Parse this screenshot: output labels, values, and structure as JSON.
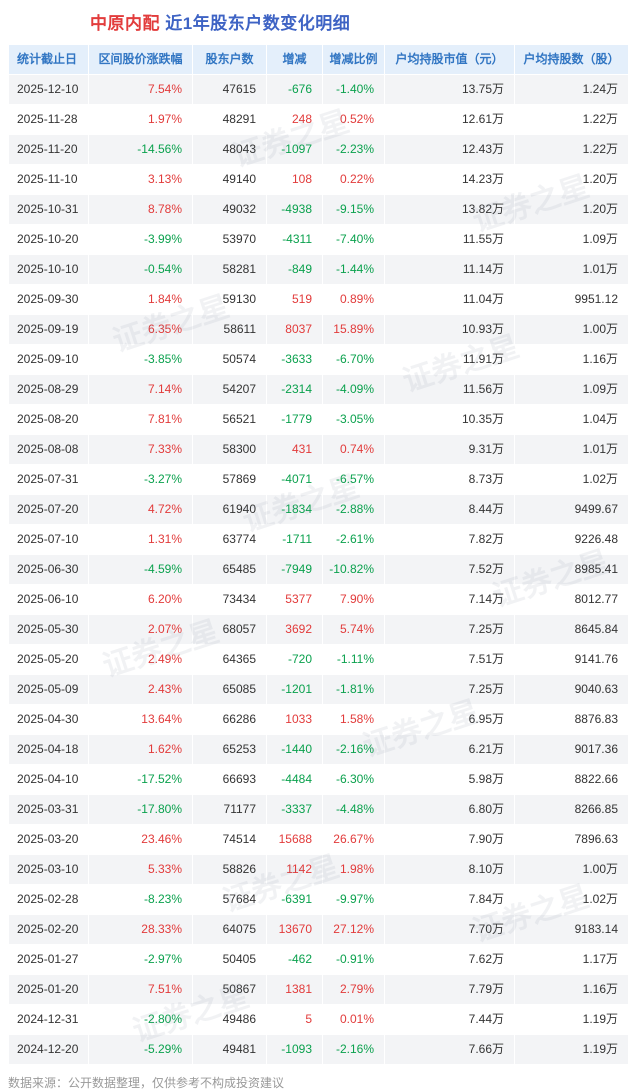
{
  "title": {
    "stock_name": "中原内配",
    "subtitle": "近1年股东户数变化明细"
  },
  "footer_note": "数据来源：公开数据整理，仅供参考不构成投资建议",
  "watermark_text": "证券之星",
  "colors": {
    "title_stock": "#e23c3c",
    "title_subtitle": "#3e63c4",
    "header_bg": "#e4effb",
    "header_text": "#3276c3",
    "stripe_bg": "#f3f4f6",
    "table_border": "#4d8fd1",
    "positive": "#e23a3a",
    "negative": "#0aa14d",
    "footer_text": "#999999"
  },
  "chart_data": {
    "type": "table",
    "title": "中原内配 近1年股东户数变化明细",
    "columns": [
      "统计截止日",
      "区间股价涨跌幅",
      "股东户数",
      "增减",
      "增减比例",
      "户均持股市值（元）",
      "户均持股数（股）"
    ],
    "rows": [
      [
        "2025-12-10",
        "7.54%",
        "47615",
        "-676",
        "-1.40%",
        "13.75万",
        "1.24万"
      ],
      [
        "2025-11-28",
        "1.97%",
        "48291",
        "248",
        "0.52%",
        "12.61万",
        "1.22万"
      ],
      [
        "2025-11-20",
        "-14.56%",
        "48043",
        "-1097",
        "-2.23%",
        "12.43万",
        "1.22万"
      ],
      [
        "2025-11-10",
        "3.13%",
        "49140",
        "108",
        "0.22%",
        "14.23万",
        "1.20万"
      ],
      [
        "2025-10-31",
        "8.78%",
        "49032",
        "-4938",
        "-9.15%",
        "13.82万",
        "1.20万"
      ],
      [
        "2025-10-20",
        "-3.99%",
        "53970",
        "-4311",
        "-7.40%",
        "11.55万",
        "1.09万"
      ],
      [
        "2025-10-10",
        "-0.54%",
        "58281",
        "-849",
        "-1.44%",
        "11.14万",
        "1.01万"
      ],
      [
        "2025-09-30",
        "1.84%",
        "59130",
        "519",
        "0.89%",
        "11.04万",
        "9951.12"
      ],
      [
        "2025-09-19",
        "6.35%",
        "58611",
        "8037",
        "15.89%",
        "10.93万",
        "1.00万"
      ],
      [
        "2025-09-10",
        "-3.85%",
        "50574",
        "-3633",
        "-6.70%",
        "11.91万",
        "1.16万"
      ],
      [
        "2025-08-29",
        "7.14%",
        "54207",
        "-2314",
        "-4.09%",
        "11.56万",
        "1.09万"
      ],
      [
        "2025-08-20",
        "7.81%",
        "56521",
        "-1779",
        "-3.05%",
        "10.35万",
        "1.04万"
      ],
      [
        "2025-08-08",
        "7.33%",
        "58300",
        "431",
        "0.74%",
        "9.31万",
        "1.01万"
      ],
      [
        "2025-07-31",
        "-3.27%",
        "57869",
        "-4071",
        "-6.57%",
        "8.73万",
        "1.02万"
      ],
      [
        "2025-07-20",
        "4.72%",
        "61940",
        "-1834",
        "-2.88%",
        "8.44万",
        "9499.67"
      ],
      [
        "2025-07-10",
        "1.31%",
        "63774",
        "-1711",
        "-2.61%",
        "7.82万",
        "9226.48"
      ],
      [
        "2025-06-30",
        "-4.59%",
        "65485",
        "-7949",
        "-10.82%",
        "7.52万",
        "8985.41"
      ],
      [
        "2025-06-10",
        "6.20%",
        "73434",
        "5377",
        "7.90%",
        "7.14万",
        "8012.77"
      ],
      [
        "2025-05-30",
        "2.07%",
        "68057",
        "3692",
        "5.74%",
        "7.25万",
        "8645.84"
      ],
      [
        "2025-05-20",
        "2.49%",
        "64365",
        "-720",
        "-1.11%",
        "7.51万",
        "9141.76"
      ],
      [
        "2025-05-09",
        "2.43%",
        "65085",
        "-1201",
        "-1.81%",
        "7.25万",
        "9040.63"
      ],
      [
        "2025-04-30",
        "13.64%",
        "66286",
        "1033",
        "1.58%",
        "6.95万",
        "8876.83"
      ],
      [
        "2025-04-18",
        "1.62%",
        "65253",
        "-1440",
        "-2.16%",
        "6.21万",
        "9017.36"
      ],
      [
        "2025-04-10",
        "-17.52%",
        "66693",
        "-4484",
        "-6.30%",
        "5.98万",
        "8822.66"
      ],
      [
        "2025-03-31",
        "-17.80%",
        "71177",
        "-3337",
        "-4.48%",
        "6.80万",
        "8266.85"
      ],
      [
        "2025-03-20",
        "23.46%",
        "74514",
        "15688",
        "26.67%",
        "7.90万",
        "7896.63"
      ],
      [
        "2025-03-10",
        "5.33%",
        "58826",
        "1142",
        "1.98%",
        "8.10万",
        "1.00万"
      ],
      [
        "2025-02-28",
        "-8.23%",
        "57684",
        "-6391",
        "-9.97%",
        "7.84万",
        "1.02万"
      ],
      [
        "2025-02-20",
        "28.33%",
        "64075",
        "13670",
        "27.12%",
        "7.70万",
        "9183.14"
      ],
      [
        "2025-01-27",
        "-2.97%",
        "50405",
        "-462",
        "-0.91%",
        "7.62万",
        "1.17万"
      ],
      [
        "2025-01-20",
        "7.51%",
        "50867",
        "1381",
        "2.79%",
        "7.79万",
        "1.16万"
      ],
      [
        "2024-12-31",
        "-2.80%",
        "49486",
        "5",
        "0.01%",
        "7.44万",
        "1.19万"
      ],
      [
        "2024-12-20",
        "-5.29%",
        "49481",
        "-1093",
        "-2.16%",
        "7.66万",
        "1.19万"
      ]
    ]
  }
}
